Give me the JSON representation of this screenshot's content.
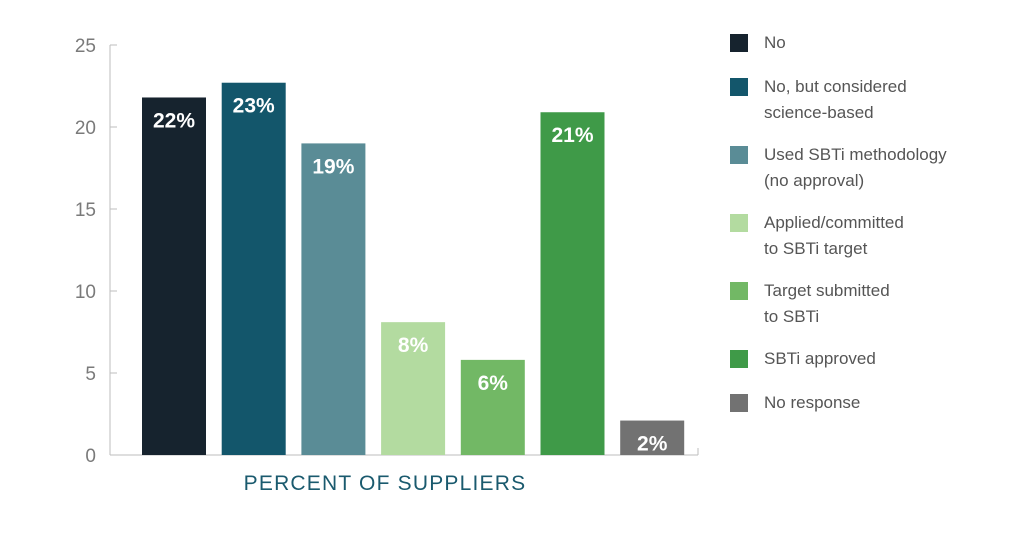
{
  "chart_data": {
    "type": "bar",
    "xlabel": "PERCENT OF SUPPLIERS",
    "ylabel": "",
    "ylim": [
      0,
      25
    ],
    "yticks": [
      0,
      5,
      10,
      15,
      20,
      25
    ],
    "grid": false,
    "legend_position": "right",
    "categories": [
      "No",
      "No, but considered science-based",
      "Used SBTi methodology (no approval)",
      "Applied/committed to SBTi target",
      "Target submitted to SBTi",
      "SBTi approved",
      "No response"
    ],
    "values": [
      21.8,
      22.7,
      19.0,
      8.1,
      5.8,
      20.9,
      2.1
    ],
    "data_labels": [
      "22%",
      "23%",
      "19%",
      "8%",
      "6%",
      "21%",
      "2%"
    ],
    "colors": [
      "#16232e",
      "#13566b",
      "#5a8c96",
      "#b3dba0",
      "#72b865",
      "#3f9a48",
      "#727272"
    ]
  },
  "legend": {
    "items": [
      {
        "label": "No",
        "color": "#16232e"
      },
      {
        "label": "No, but considered\nscience-based",
        "color": "#13566b"
      },
      {
        "label": "Used SBTi methodology\n(no approval)",
        "color": "#5a8c96"
      },
      {
        "label": "Applied/committed\nto SBTi target",
        "color": "#b3dba0"
      },
      {
        "label": "Target submitted\nto SBTi",
        "color": "#72b865"
      },
      {
        "label": "SBTi approved",
        "color": "#3f9a48"
      },
      {
        "label": "No response",
        "color": "#727272"
      }
    ]
  }
}
